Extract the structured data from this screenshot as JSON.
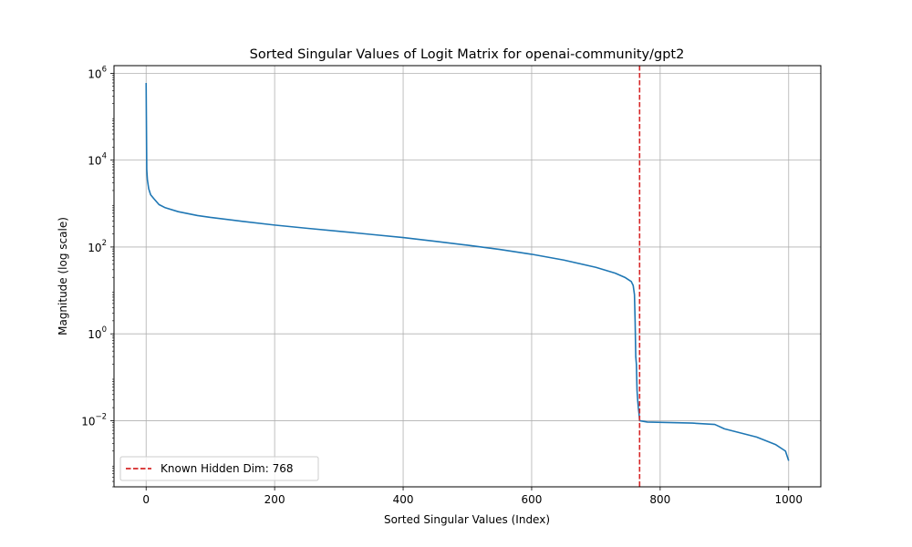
{
  "chart_data": {
    "type": "line",
    "title": "Sorted Singular Values of Logit Matrix for openai-community/gpt2",
    "xlabel": "Sorted Singular Values (Index)",
    "ylabel": "Magnitude (log scale)",
    "xlim": [
      -50,
      1050
    ],
    "ylim": [
      0.0003,
      1500000
    ],
    "yscale": "log",
    "grid": true,
    "legend_position": "bottom-left",
    "xticks": [
      0,
      200,
      400,
      600,
      800,
      1000
    ],
    "yticks": [
      {
        "value": 0.01,
        "base": "10",
        "exp": "−2"
      },
      {
        "value": 1,
        "base": "10",
        "exp": "0"
      },
      {
        "value": 100,
        "base": "10",
        "exp": "2"
      },
      {
        "value": 10000,
        "base": "10",
        "exp": "4"
      },
      {
        "value": 1000000,
        "base": "10",
        "exp": "6"
      }
    ],
    "series": [
      {
        "color": "#1f77b4",
        "points": [
          [
            0,
            600000
          ],
          [
            1,
            6000
          ],
          [
            2,
            3500
          ],
          [
            4,
            2200
          ],
          [
            7,
            1600
          ],
          [
            12,
            1300
          ],
          [
            20,
            950
          ],
          [
            30,
            800
          ],
          [
            50,
            650
          ],
          [
            80,
            530
          ],
          [
            100,
            480
          ],
          [
            150,
            390
          ],
          [
            200,
            320
          ],
          [
            250,
            270
          ],
          [
            300,
            230
          ],
          [
            350,
            195
          ],
          [
            400,
            165
          ],
          [
            450,
            135
          ],
          [
            500,
            110
          ],
          [
            550,
            88
          ],
          [
            600,
            68
          ],
          [
            650,
            50
          ],
          [
            700,
            34
          ],
          [
            730,
            25
          ],
          [
            745,
            20
          ],
          [
            755,
            16
          ],
          [
            758,
            13
          ],
          [
            760,
            8
          ],
          [
            761,
            2
          ],
          [
            762,
            0.3
          ],
          [
            763,
            0.2
          ],
          [
            764,
            0.05
          ],
          [
            765,
            0.03
          ],
          [
            766,
            0.02
          ],
          [
            767,
            0.015
          ],
          [
            768,
            0.01
          ],
          [
            780,
            0.0093
          ],
          [
            850,
            0.0088
          ],
          [
            885,
            0.0082
          ],
          [
            900,
            0.0065
          ],
          [
            950,
            0.0042
          ],
          [
            980,
            0.0028
          ],
          [
            995,
            0.002
          ],
          [
            1000,
            0.0012
          ]
        ]
      },
      {
        "name": "Known Hidden Dim: 768",
        "color": "#d62728",
        "style": "dashed",
        "vline": 768
      }
    ]
  }
}
